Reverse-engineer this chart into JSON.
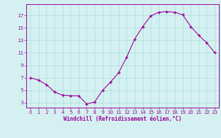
{
  "x": [
    0,
    1,
    2,
    3,
    4,
    5,
    6,
    7,
    8,
    9,
    10,
    11,
    12,
    13,
    14,
    15,
    16,
    17,
    18,
    19,
    20,
    21,
    22,
    23
  ],
  "y": [
    7.0,
    6.6,
    5.9,
    4.7,
    4.2,
    4.1,
    4.1,
    2.8,
    3.1,
    5.0,
    6.3,
    7.8,
    10.3,
    13.2,
    15.2,
    16.9,
    17.5,
    17.6,
    17.5,
    17.1,
    15.2,
    13.8,
    12.6,
    11.0
  ],
  "line_color": "#990099",
  "marker": "+",
  "marker_size": 3,
  "bg_color": "#d4f0f0",
  "grid_color": "#aadddd",
  "xlabel": "Windchill (Refroidissement éolien,°C)",
  "yticks": [
    3,
    5,
    7,
    9,
    11,
    13,
    15,
    17
  ],
  "xticks": [
    0,
    1,
    2,
    3,
    4,
    5,
    6,
    7,
    8,
    9,
    10,
    11,
    12,
    13,
    14,
    15,
    16,
    17,
    18,
    19,
    20,
    21,
    22,
    23
  ],
  "ylim": [
    2.2,
    18.8
  ],
  "xlim": [
    -0.5,
    23.5
  ],
  "tick_color": "#990099",
  "label_color": "#990099"
}
